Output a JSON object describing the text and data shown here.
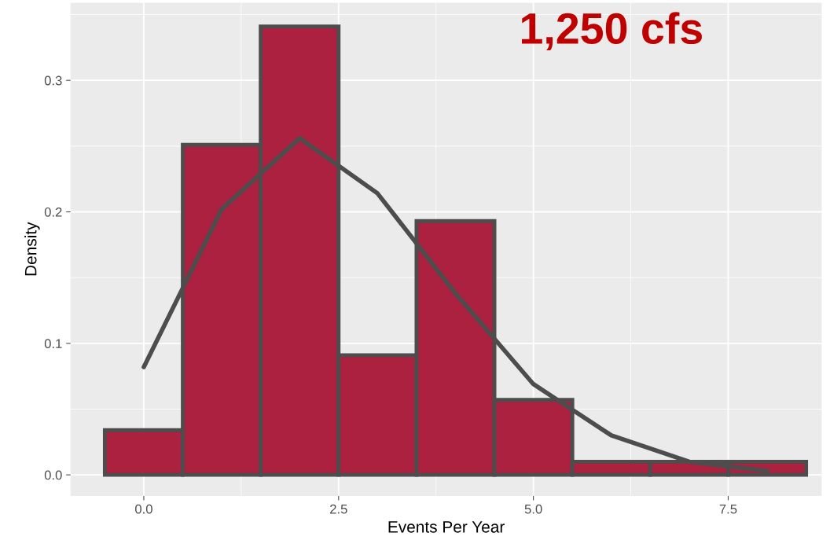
{
  "chart_data": {
    "type": "histogram",
    "xlabel": "Events Per Year",
    "ylabel": "Density",
    "bins": [
      -0.5,
      0.5,
      1.5,
      2.5,
      3.5,
      4.5,
      5.5,
      6.5,
      7.5,
      8.5
    ],
    "values": [
      0.034,
      0.251,
      0.341,
      0.091,
      0.193,
      0.057,
      0.01,
      0.01,
      0.01
    ],
    "color": "#ab213f",
    "series": [
      {
        "type": "line",
        "color": "#4d4d4d",
        "x": [
          0,
          1,
          2,
          3,
          4,
          5,
          6,
          7,
          8
        ],
        "values": [
          0.082,
          0.202,
          0.256,
          0.214,
          0.138,
          0.069,
          0.03,
          0.01,
          0.003
        ]
      }
    ],
    "annotations": [
      "1,250 cfs"
    ],
    "xlim": [
      -0.94,
      8.7
    ],
    "ylim": [
      -0.016,
      0.359
    ],
    "xticks": [
      {
        "value": 0,
        "label": "0.0"
      },
      2.5,
      {
        "value": 5,
        "label": "5.0"
      },
      7.5
    ],
    "yticks": [
      {
        "value": 0,
        "label": "0.0"
      },
      0.1,
      0.2,
      0.3
    ],
    "grid": true
  }
}
